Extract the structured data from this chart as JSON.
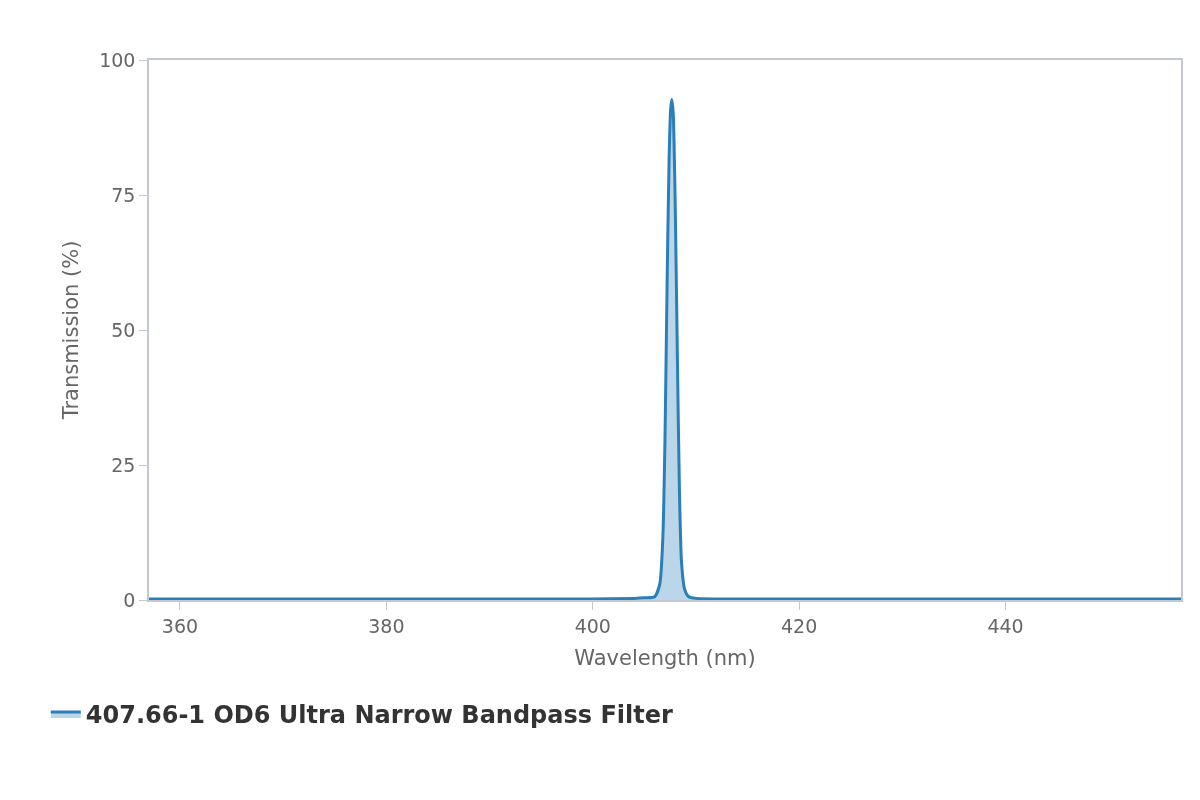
{
  "chart_data": {
    "type": "area",
    "xlabel": "Wavelength (nm)",
    "ylabel": "Transmission (%)",
    "series": [
      {
        "name": "407.66-1 OD6 Ultra Narrow Bandpass Filter",
        "color": "#2a7fb8",
        "x": [
          357,
          380,
          400,
          404,
          405,
          406,
          406.5,
          406.8,
          407.0,
          407.2,
          407.4,
          407.55,
          407.66,
          407.8,
          408.0,
          408.2,
          408.4,
          408.6,
          408.9,
          409.3,
          410,
          415,
          440,
          457
        ],
        "values": [
          0.2,
          0.2,
          0.2,
          0.3,
          0.4,
          0.6,
          3,
          12,
          30,
          58,
          82,
          91,
          92.7,
          90,
          72,
          45,
          20,
          7,
          2,
          0.6,
          0.3,
          0.2,
          0.2,
          0.2
        ]
      }
    ],
    "xlim": [
      357,
      457
    ],
    "xticks": [
      360,
      380,
      400,
      420,
      440
    ],
    "ylim": [
      0,
      100
    ],
    "yticks": [
      0,
      25,
      50,
      75,
      100
    ],
    "legend": "bottom left"
  }
}
